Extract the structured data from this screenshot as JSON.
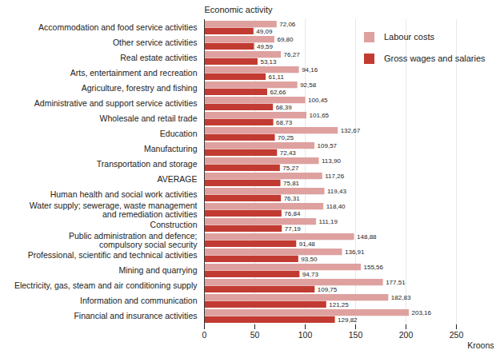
{
  "chart_data": {
    "type": "bar",
    "orientation": "horizontal",
    "xlabel": "Kroons",
    "ylabel": "Economic activity",
    "categories": [
      "Accommodation and food service activities",
      "Other service activities",
      "Real estate activities",
      "Arts, entertainment and recreation",
      "Agriculture, forestry and fishing",
      "Administrative and support service activities",
      "Wholesale and retail trade",
      "Education",
      "Manufacturing",
      "Transportation and storage",
      "AVERAGE",
      "Human health and social work activities",
      "Water supply; sewerage, waste management\nand remediation activities",
      "Construction",
      "Public administration and defence;\ncompulsory social security",
      "Professional, scientific and technical activities",
      "Mining and quarrying",
      "Electricity, gas, steam and air conditioning supply",
      "Information and communication",
      "Financial and insurance activities"
    ],
    "series": [
      {
        "name": "Labour costs",
        "color": "#dea19f",
        "values": [
          72.06,
          69.8,
          76.27,
          94.16,
          92.58,
          100.45,
          101.65,
          132.67,
          109.57,
          113.9,
          117.26,
          119.43,
          118.4,
          111.19,
          148.88,
          136.91,
          155.56,
          177.51,
          182.83,
          203.16
        ],
        "value_labels": [
          "72,06",
          "69,80",
          "76,27",
          "94,16",
          "92,58",
          "100,45",
          "101,65",
          "132,67",
          "109,57",
          "113,90",
          "117,26",
          "119,43",
          "118,40",
          "111,19",
          "148,88",
          "136,91",
          "155,56",
          "177,51",
          "182,83",
          "203,16"
        ]
      },
      {
        "name": "Gross wages and salaries",
        "color": "#c23b32",
        "values": [
          49.09,
          49.59,
          53.13,
          61.11,
          62.66,
          68.39,
          68.73,
          70.25,
          72.43,
          75.27,
          75.81,
          76.31,
          76.84,
          77.19,
          91.48,
          93.5,
          94.73,
          109.75,
          121.25,
          129.82
        ],
        "value_labels": [
          "49,09",
          "49,59",
          "53,13",
          "61,11",
          "62,66",
          "68,39",
          "68,73",
          "70,25",
          "72,43",
          "75,27",
          "75,81",
          "76,31",
          "76,84",
          "77,19",
          "91,48",
          "93,50",
          "94,73",
          "109,75",
          "121,25",
          "129,82"
        ]
      }
    ],
    "xlim": [
      0,
      250
    ],
    "xticks": [
      0,
      50,
      100,
      150,
      200,
      250
    ],
    "grid": true,
    "legend": "top-right",
    "data_labels": true
  }
}
